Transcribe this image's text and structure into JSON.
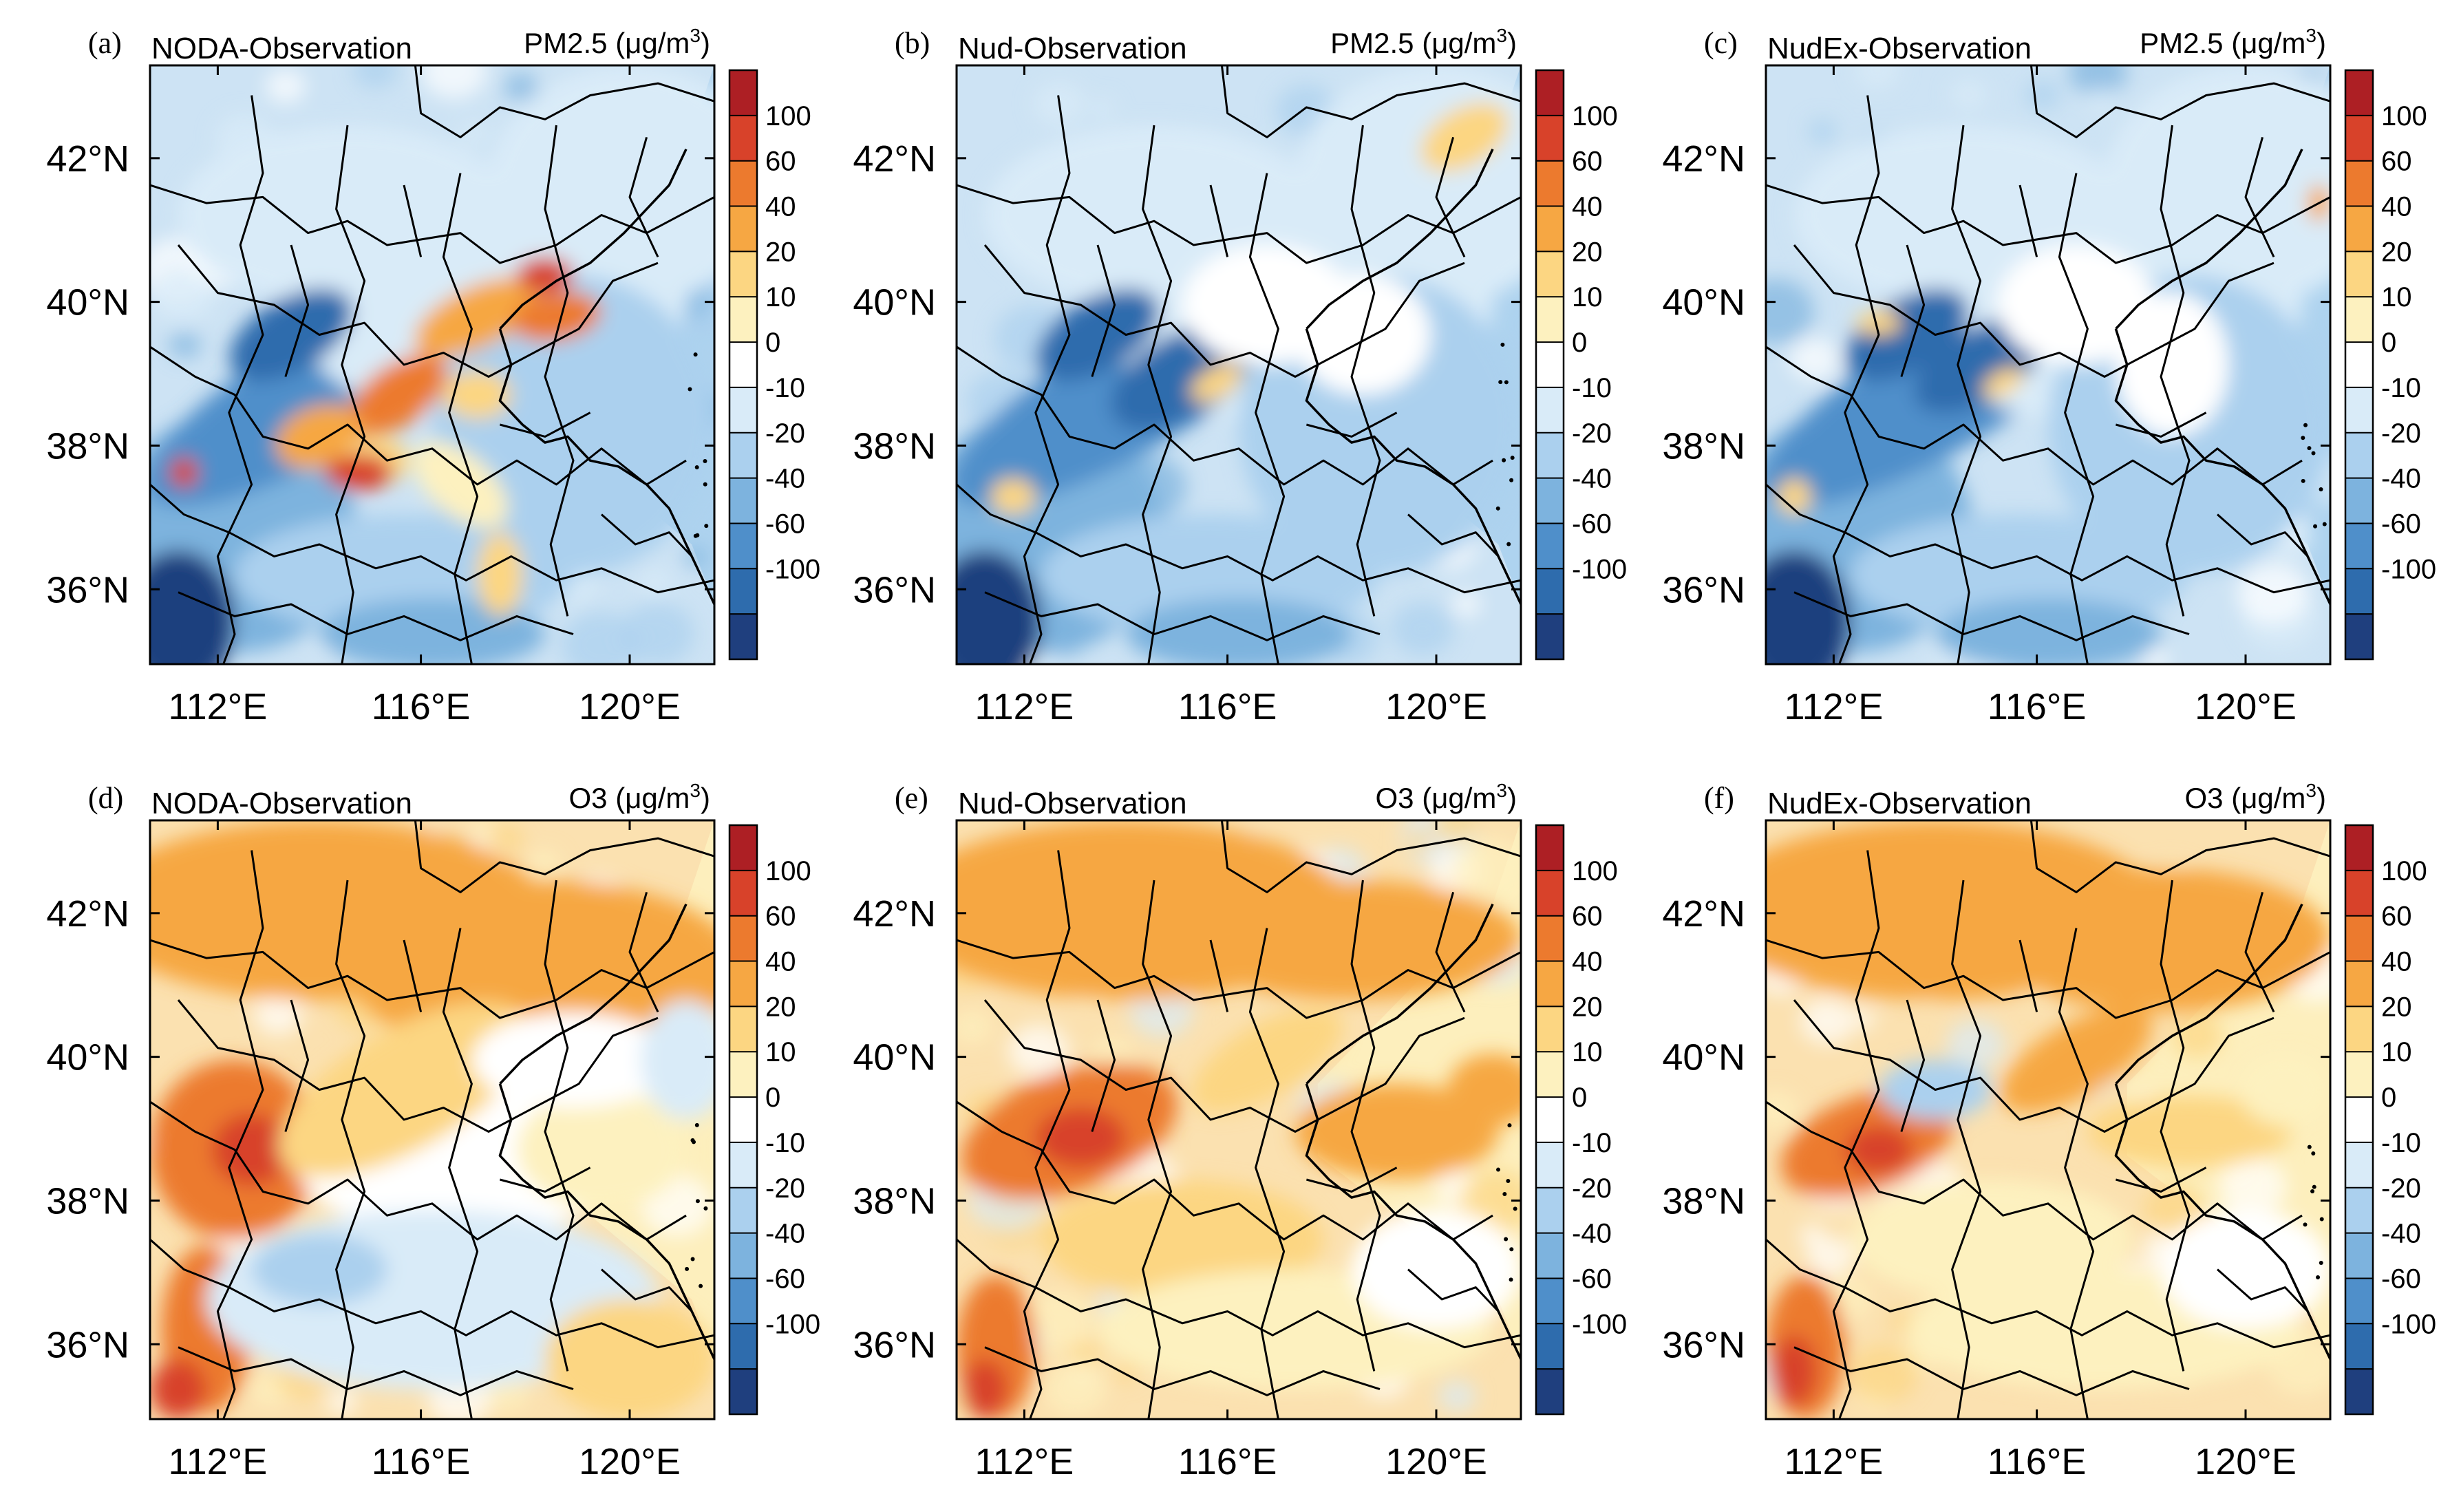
{
  "figure": {
    "colors": {
      "bins": [
        "#1f3f7e",
        "#2e6cad",
        "#4f8fca",
        "#7db3de",
        "#abd0ee",
        "#d9ebf8",
        "#ffffff",
        "#fdf1bf",
        "#fcd682",
        "#f6a743",
        "#ec7a2e",
        "#d8422a",
        "#ad1f24"
      ],
      "boundary": "#000000",
      "land_base": {
        "pm": "#cde3f4",
        "o3": "#fbe1b0"
      }
    },
    "colorbar": {
      "ticks": [
        "100",
        "60",
        "40",
        "20",
        "10",
        "0",
        "-10",
        "-20",
        "-40",
        "-60",
        "-100"
      ]
    },
    "axes": {
      "x_ticks": [
        "112°E",
        "116°E",
        "120°E"
      ],
      "y_ticks": [
        "42°N",
        "40°N",
        "38°N",
        "36°N"
      ]
    },
    "panels": [
      {
        "id": "a",
        "letter": "(a)",
        "title": "NODA-Observation",
        "variable": "PM2.5",
        "unit_prefix": "(μg/m",
        "unit_sup": "3",
        "unit_suffix": ")"
      },
      {
        "id": "b",
        "letter": "(b)",
        "title": "Nud-Observation",
        "variable": "PM2.5",
        "unit_prefix": "(μg/m",
        "unit_sup": "3",
        "unit_suffix": ")"
      },
      {
        "id": "c",
        "letter": "(c)",
        "title": "NudEx-Observation",
        "variable": "PM2.5",
        "unit_prefix": "(μg/m",
        "unit_sup": "3",
        "unit_suffix": ")"
      },
      {
        "id": "d",
        "letter": "(d)",
        "title": "NODA-Observation",
        "variable": "O3",
        "unit_prefix": "(μg/m",
        "unit_sup": "3",
        "unit_suffix": ")"
      },
      {
        "id": "e",
        "letter": "(e)",
        "title": "Nud-Observation",
        "variable": "O3",
        "unit_prefix": "(μg/m",
        "unit_sup": "3",
        "unit_suffix": ")"
      },
      {
        "id": "f",
        "letter": "(f)",
        "title": "NudEx-Observation",
        "variable": "O3",
        "unit_prefix": "(μg/m",
        "unit_sup": "3",
        "unit_suffix": ")"
      }
    ]
  }
}
